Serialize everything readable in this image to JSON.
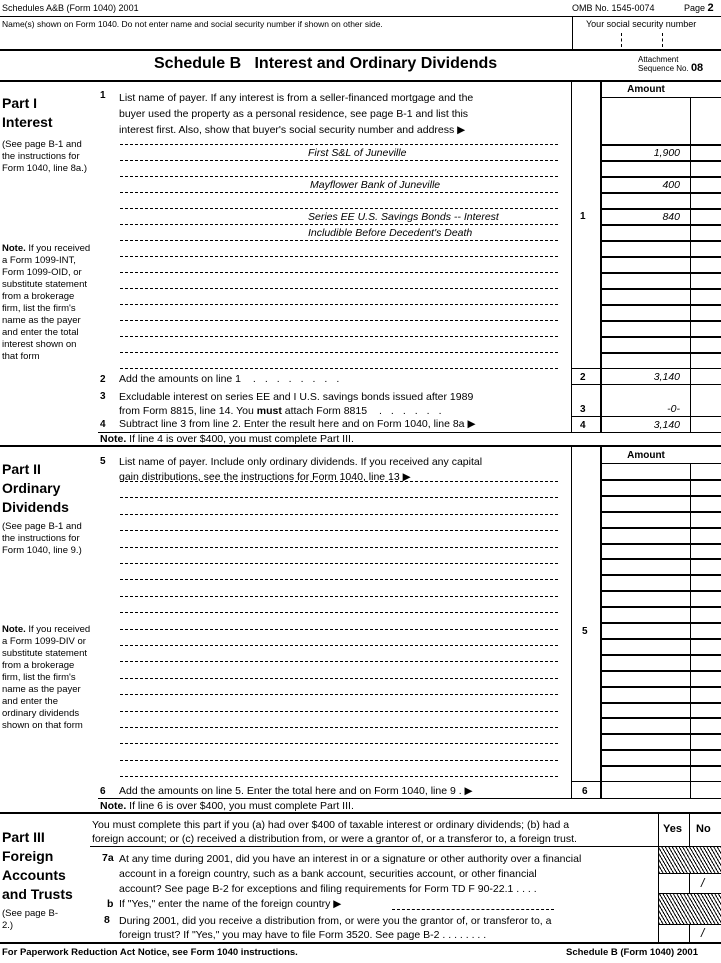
{
  "header": {
    "form_id": "Schedules A&B (Form 1040) 2001",
    "omb": "OMB No. 1545-0074",
    "page_label": "Page",
    "page_num": "2",
    "name_label": "Name(s) shown on Form 1040. Do not enter name and social security number if shown on other side.",
    "ssn_label": "Your social security number",
    "title": "Schedule B   Interest and Ordinary Dividends",
    "attach_1": "Attachment",
    "attach_2": "Sequence No.",
    "seq": "08"
  },
  "part1": {
    "title_1": "Part I",
    "title_2": "Interest",
    "see": "(See page B-1 and the instructions for Form 1040, line 8a.)",
    "note_b": "Note.",
    "note": " If you received a Form 1099-INT, Form 1099-OID, or substitute statement from a brokerage firm, list the firm's name as the payer and enter the total interest shown on that form",
    "amount_header": "Amount",
    "line1_num": "1",
    "line1_l1": "List name of payer. If any interest is from a seller-financed mortgage and the",
    "line1_l2": "buyer used the property as a personal residence, see page B-1 and list this",
    "line1_l3": "interest first. Also, show that buyer's social security number and address ▶",
    "payers": [
      {
        "name": "First S&L of Juneville",
        "amount": "1,900"
      },
      {
        "name": "Mayflower Bank of Juneville",
        "amount": "400"
      },
      {
        "name": "Series EE U.S. Savings Bonds -- Interest",
        "amount": "840"
      },
      {
        "name": "Includible Before Decedent's Death",
        "amount": ""
      }
    ],
    "line2_num": "2",
    "line2": "Add the amounts on line 1",
    "line2_amt": "3,140",
    "line3_num": "3",
    "line3_l1": "Excludable interest on series EE and I U.S. savings bonds issued after 1989",
    "line3_l2a": "from Form 8815, line 14. You ",
    "line3_l2b": "must",
    "line3_l2c": " attach Form 8815",
    "line3_amt": "-0-",
    "line4_num": "4",
    "line4": "Subtract line 3 from line 2. Enter the result here and on Form 1040, line 8a ▶",
    "line4_amt": "3,140",
    "foot_b": "Note.",
    "foot": " If line 4 is over $400, you must complete Part III."
  },
  "part2": {
    "title_1": "Part II",
    "title_2": "Ordinary",
    "title_3": "Dividends",
    "see": "(See page B-1 and the instructions for Form 1040, line 9.)",
    "note_b": "Note.",
    "note": " If you received a Form 1099-DIV or substitute statement from a brokerage firm, list the firm's name as the payer and enter the ordinary dividends shown on that form",
    "amount_header": "Amount",
    "line5_num": "5",
    "line5_l1": "List name of payer. Include only ordinary dividends. If you received any capital",
    "line5_l2": "gain distributions, see the instructions for Form 1040, line 13 ▶",
    "line6_num": "6",
    "line6": "Add the amounts on line 5. Enter the total here and on Form 1040, line 9 .   ▶",
    "foot_b": "Note.",
    "foot": " If line 6 is over $400, you must complete Part III."
  },
  "part3": {
    "title_1": "Part III",
    "title_2": "Foreign",
    "title_3": "Accounts",
    "title_4": "and Trusts",
    "see": "(See page B-2.)",
    "intro_1": "You must complete this part if you (a) had over $400 of taxable interest or ordinary dividends; (b) had a",
    "intro_2": "foreign account; or (c) received a distribution from, or were a grantor of, or a transferor to, a foreign trust.",
    "yes": "Yes",
    "no": "No",
    "q7a_num": "7a",
    "q7a_l1": "At any time during 2001, did you have an interest in or a signature or other authority over a financial",
    "q7a_l2": "account in a foreign country, such as a bank account, securities account, or other financial",
    "q7a_l3": "account? See page B-2 for exceptions and filing requirements for Form TD F 90-22.1 .   .   .   .",
    "q7b_num": "b",
    "q7b": "If \"Yes,\" enter the name of the foreign country ▶",
    "q8_num": "8",
    "q8_l1": "During 2001, did you receive a distribution from, or were you the grantor of, or transferor to, a",
    "q8_l2": "foreign trust? If \"Yes,\" you may have to file Form 3520. See page B-2 .   .   .   .   .   .   .   .",
    "q7a_answer": "No",
    "q8_answer": "No"
  },
  "footer": {
    "left": "For Paperwork Reduction Act Notice, see Form 1040 instructions.",
    "right": "Schedule B (Form 1040) 2001"
  }
}
